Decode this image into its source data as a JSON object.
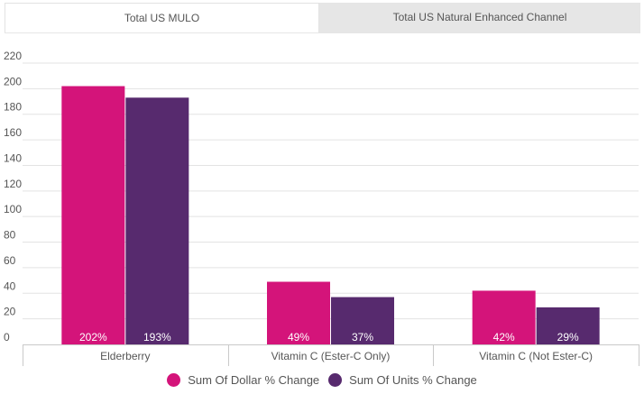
{
  "tabs": [
    {
      "label": "Total US MULO",
      "active": true
    },
    {
      "label": "Total US Natural Enhanced Channel",
      "active": false
    }
  ],
  "colors": {
    "dollar": "#d4147a",
    "units": "#572a6e",
    "grid": "#e3e3e3",
    "tab_bg": "#e6e6e6"
  },
  "chart_data": {
    "type": "bar",
    "title": "",
    "xlabel": "",
    "ylabel": "",
    "categories": [
      "Elderberry",
      "Vitamin C (Ester-C Only)",
      "Vitamin C (Not Ester-C)"
    ],
    "series": [
      {
        "name": "Sum Of Dollar % Change",
        "values": [
          202,
          49,
          42
        ],
        "labels": [
          "202%",
          "49%",
          "42%"
        ],
        "color": "#d4147a"
      },
      {
        "name": "Sum Of Units % Change",
        "values": [
          193,
          37,
          29
        ],
        "labels": [
          "193%",
          "37%",
          "29%"
        ],
        "color": "#572a6e"
      }
    ],
    "ylim": [
      0,
      220
    ],
    "yticks": [
      0,
      20,
      40,
      60,
      80,
      100,
      120,
      140,
      160,
      180,
      200,
      220
    ],
    "grid": true,
    "legend": "bottom-center"
  }
}
